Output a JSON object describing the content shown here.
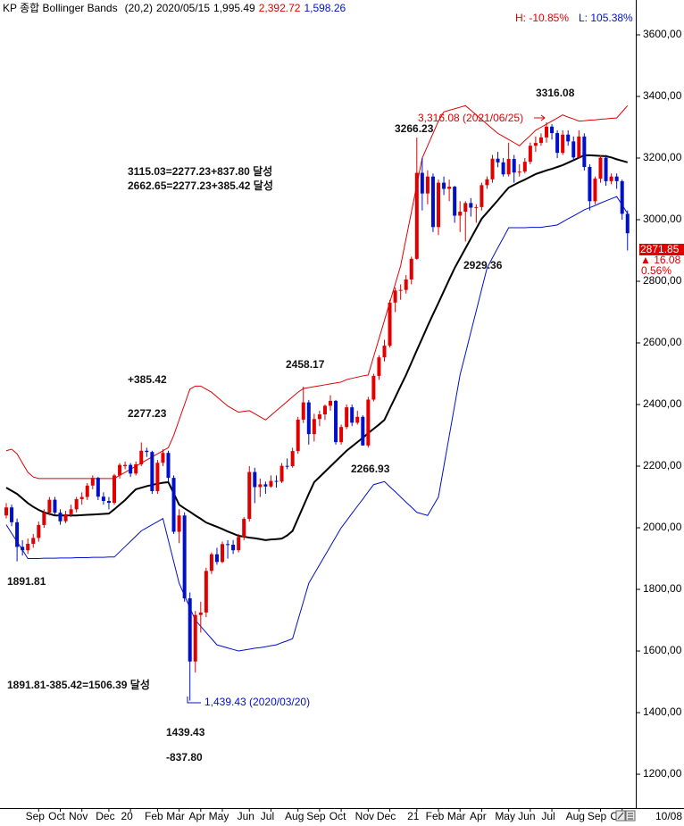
{
  "header": {
    "title": "KP 종합 Bollinger Bands",
    "params": "(20,2)",
    "date": "2020/05/15",
    "close": "1,995.49",
    "upper": "2,392.72",
    "lower": "1,598.26",
    "high_pct": "H: -10.85%",
    "low_pct": "L: 105.38%"
  },
  "chart_data": {
    "type": "candlestick",
    "categories": [
      null,
      null,
      null,
      null,
      null,
      null,
      "Sep",
      null,
      null,
      null,
      "Oct",
      null,
      null,
      null,
      "Nov",
      null,
      null,
      null,
      null,
      "Dec",
      null,
      null,
      null,
      "20",
      null,
      null,
      null,
      null,
      "Feb",
      null,
      null,
      null,
      "Mar",
      null,
      null,
      null,
      "Apr",
      null,
      null,
      null,
      "May",
      null,
      null,
      null,
      null,
      "Jun",
      null,
      null,
      null,
      "Jul",
      null,
      null,
      null,
      null,
      "Aug",
      null,
      null,
      null,
      "Sep",
      null,
      null,
      null,
      "Oct",
      null,
      null,
      null,
      null,
      "Nov",
      null,
      null,
      null,
      "Dec",
      null,
      null,
      null,
      null,
      "21",
      null,
      null,
      null,
      "Feb",
      null,
      null,
      null,
      "Mar",
      null,
      null,
      null,
      "Apr",
      null,
      null,
      null,
      null,
      "May",
      null,
      null,
      null,
      "Jun",
      null,
      null,
      null,
      "Jul",
      null,
      null,
      null,
      null,
      "Aug",
      null,
      null,
      null,
      "Sep",
      null,
      null,
      null,
      "Oct",
      null
    ],
    "ohlc": [
      [
        2040,
        2080,
        2030,
        2066
      ],
      [
        2066,
        2075,
        2005,
        2018
      ],
      [
        2018,
        2030,
        1891,
        1938
      ],
      [
        1938,
        1960,
        1910,
        1927
      ],
      [
        1927,
        1965,
        1915,
        1948
      ],
      [
        1948,
        1980,
        1935,
        1967
      ],
      [
        1967,
        2020,
        1955,
        2009
      ],
      [
        2009,
        2060,
        2000,
        2049
      ],
      [
        2049,
        2100,
        2040,
        2091
      ],
      [
        2091,
        2100,
        2040,
        2049
      ],
      [
        2049,
        2060,
        2010,
        2021
      ],
      [
        2021,
        2055,
        2015,
        2044
      ],
      [
        2044,
        2075,
        2035,
        2060
      ],
      [
        2060,
        2100,
        2050,
        2093
      ],
      [
        2093,
        2115,
        2075,
        2100
      ],
      [
        2100,
        2145,
        2090,
        2137
      ],
      [
        2137,
        2170,
        2125,
        2162
      ],
      [
        2162,
        2165,
        2090,
        2101
      ],
      [
        2101,
        2115,
        2075,
        2087
      ],
      [
        2087,
        2100,
        2060,
        2081
      ],
      [
        2081,
        2175,
        2075,
        2170
      ],
      [
        2170,
        2210,
        2160,
        2204
      ],
      [
        2200,
        2215,
        2190,
        2204
      ],
      [
        2204,
        2210,
        2165,
        2176
      ],
      [
        2176,
        2215,
        2170,
        2206
      ],
      [
        2206,
        2277,
        2200,
        2250
      ],
      [
        2250,
        2260,
        2230,
        2246
      ],
      [
        2246,
        2250,
        2110,
        2119
      ],
      [
        2119,
        2220,
        2110,
        2211
      ],
      [
        2211,
        2255,
        2200,
        2243
      ],
      [
        2243,
        2250,
        2150,
        2162
      ],
      [
        2162,
        2170,
        1980,
        1987
      ],
      [
        1987,
        2060,
        1950,
        2040
      ],
      [
        2040,
        2050,
        1760,
        1771
      ],
      [
        1771,
        1790,
        1439,
        1566
      ],
      [
        1566,
        1730,
        1530,
        1717
      ],
      [
        1717,
        1760,
        1660,
        1725
      ],
      [
        1725,
        1870,
        1710,
        1860
      ],
      [
        1860,
        1920,
        1850,
        1914
      ],
      [
        1914,
        1935,
        1880,
        1889
      ],
      [
        1889,
        1955,
        1885,
        1947
      ],
      [
        1947,
        1960,
        1900,
        1945
      ],
      [
        1945,
        1960,
        1915,
        1927
      ],
      [
        1927,
        1980,
        1920,
        1970
      ],
      [
        1970,
        2035,
        1960,
        2029
      ],
      [
        2029,
        2200,
        2020,
        2181
      ],
      [
        2181,
        2195,
        2080,
        2132
      ],
      [
        2132,
        2160,
        2100,
        2141
      ],
      [
        2141,
        2150,
        2110,
        2134
      ],
      [
        2134,
        2170,
        2130,
        2152
      ],
      [
        2152,
        2170,
        2130,
        2150
      ],
      [
        2150,
        2210,
        2145,
        2201
      ],
      [
        2201,
        2225,
        2190,
        2200
      ],
      [
        2200,
        2260,
        2195,
        2249
      ],
      [
        2249,
        2360,
        2240,
        2351
      ],
      [
        2351,
        2458,
        2340,
        2407
      ],
      [
        2407,
        2415,
        2270,
        2304
      ],
      [
        2304,
        2370,
        2280,
        2353
      ],
      [
        2353,
        2380,
        2330,
        2368
      ],
      [
        2368,
        2400,
        2350,
        2396
      ],
      [
        2396,
        2430,
        2380,
        2412
      ],
      [
        2412,
        2415,
        2270,
        2278
      ],
      [
        2278,
        2335,
        2270,
        2327
      ],
      [
        2327,
        2400,
        2320,
        2391
      ],
      [
        2391,
        2400,
        2330,
        2341
      ],
      [
        2341,
        2380,
        2335,
        2360
      ],
      [
        2360,
        2365,
        2266.93,
        2267
      ],
      [
        2267,
        2425,
        2260,
        2416
      ],
      [
        2416,
        2500,
        2410,
        2493
      ],
      [
        2493,
        2560,
        2480,
        2553
      ],
      [
        2553,
        2610,
        2540,
        2591
      ],
      [
        2591,
        2740,
        2585,
        2731
      ],
      [
        2731,
        2780,
        2700,
        2770
      ],
      [
        2770,
        2790,
        2740,
        2772
      ],
      [
        2772,
        2820,
        2760,
        2806
      ],
      [
        2806,
        2880,
        2790,
        2873
      ],
      [
        2873,
        3266.23,
        2870,
        3152
      ],
      [
        3152,
        3200,
        3030,
        3085
      ],
      [
        3085,
        3160,
        3050,
        3140
      ],
      [
        3140,
        3150,
        2960,
        2976
      ],
      [
        2976,
        3130,
        2950,
        3120
      ],
      [
        3120,
        3140,
        3080,
        3100
      ],
      [
        3100,
        3130,
        3060,
        3107
      ],
      [
        3107,
        3110,
        2990,
        3013
      ],
      [
        3013,
        3060,
        2960,
        3026
      ],
      [
        3026,
        3060,
        2929.36,
        3054
      ],
      [
        3054,
        3070,
        3010,
        3039
      ],
      [
        3039,
        3050,
        2990,
        3041
      ],
      [
        3041,
        3120,
        3030,
        3112
      ],
      [
        3112,
        3140,
        3100,
        3131
      ],
      [
        3131,
        3210,
        3120,
        3198
      ],
      [
        3198,
        3220,
        3170,
        3186
      ],
      [
        3186,
        3200,
        3140,
        3147
      ],
      [
        3147,
        3250,
        3140,
        3197
      ],
      [
        3197,
        3210,
        3120,
        3153
      ],
      [
        3153,
        3180,
        3140,
        3156
      ],
      [
        3156,
        3200,
        3150,
        3188
      ],
      [
        3188,
        3250,
        3180,
        3240
      ],
      [
        3240,
        3270,
        3220,
        3249
      ],
      [
        3249,
        3280,
        3240,
        3267
      ],
      [
        3267,
        3316.08,
        3250,
        3302
      ],
      [
        3302,
        3310,
        3260,
        3281
      ],
      [
        3281,
        3290,
        3200,
        3217
      ],
      [
        3217,
        3290,
        3210,
        3276
      ],
      [
        3276,
        3290,
        3240,
        3254
      ],
      [
        3254,
        3270,
        3190,
        3202
      ],
      [
        3202,
        3290,
        3200,
        3270
      ],
      [
        3270,
        3280,
        3160,
        3171
      ],
      [
        3171,
        3180,
        3030,
        3060
      ],
      [
        3060,
        3140,
        3050,
        3133
      ],
      [
        3133,
        3210,
        3120,
        3201
      ],
      [
        3201,
        3210,
        3110,
        3125
      ],
      [
        3125,
        3150,
        3115,
        3140
      ],
      [
        3140,
        3150,
        3100,
        3125
      ],
      [
        3125,
        3130,
        3000,
        3019
      ],
      [
        3019,
        3030,
        2900,
        2956
      ]
    ],
    "up_color": "#e00000",
    "down_color": "#0010c8",
    "bands": [
      {
        "color": "#e00000",
        "width": 1,
        "values": [
          2250,
          2255,
          2240,
          2210,
          2180,
          2165,
          2160,
          2160,
          2160,
          2160,
          2160,
          2160,
          2160,
          2160,
          2160,
          2160,
          2160,
          2160,
          2160,
          2160,
          2160,
          2170,
          2180,
          2190,
          2200,
          2210,
          2220,
          2230,
          2240,
          2250,
          2260,
          2300,
          2350,
          2400,
          2450,
          2460,
          2460,
          2450,
          2440,
          2425,
          2410,
          2395,
          2385,
          2375,
          2378,
          2380,
          2370,
          2360,
          2350,
          2365,
          2380,
          2395,
          2410,
          2425,
          2440,
          2452,
          2455,
          2458,
          2461,
          2464,
          2467,
          2470,
          2473,
          2481,
          2485,
          2489,
          2493,
          2496,
          2555,
          2614,
          2673,
          2732,
          2791,
          2850,
          2938,
          3025,
          3113,
          3200,
          3240,
          3280,
          3320,
          3350,
          3355,
          3360,
          3365,
          3370,
          3355,
          3340,
          3325,
          3310,
          3295,
          3280,
          3270,
          3260,
          3250,
          3240,
          3257,
          3273,
          3290,
          3300,
          3310,
          3320,
          3330,
          3340,
          3333,
          3327,
          3320,
          3321,
          3323,
          3324,
          3326,
          3327,
          3329,
          3330,
          3350,
          3370
        ]
      },
      {
        "color": "#000000",
        "width": 2,
        "values": [
          2130,
          2120,
          2110,
          2095,
          2080,
          2068,
          2058,
          2050,
          2045,
          2040,
          2040,
          2040,
          2040,
          2040,
          2041,
          2042,
          2043,
          2044,
          2045,
          2046,
          2060,
          2075,
          2090,
          2108,
          2125,
          2130,
          2135,
          2139,
          2143,
          2146,
          2148,
          2112,
          2075,
          2063,
          2052,
          2040,
          2029,
          2017,
          2010,
          2003,
          1996,
          1988,
          1981,
          1974,
          1971,
          1968,
          1966,
          1963,
          1960,
          1962,
          1963,
          1965,
          1975,
          1990,
          2030,
          2070,
          2110,
          2148,
          2165,
          2182,
          2199,
          2216,
          2233,
          2250,
          2264,
          2278,
          2292,
          2307,
          2321,
          2335,
          2350,
          2387,
          2423,
          2460,
          2496,
          2536,
          2576,
          2615,
          2655,
          2693,
          2730,
          2768,
          2806,
          2843,
          2875,
          2907,
          2939,
          2971,
          3003,
          3023,
          3043,
          3063,
          3084,
          3104,
          3113,
          3122,
          3130,
          3139,
          3148,
          3154,
          3160,
          3165,
          3171,
          3177,
          3185,
          3193,
          3201,
          3209,
          3209,
          3208,
          3207,
          3206,
          3202,
          3196,
          3191,
          3186
        ]
      },
      {
        "color": "#0010c8",
        "width": 1,
        "values": [
          2010,
          1982,
          1955,
          1928,
          1900,
          1900,
          1900,
          1901,
          1901,
          1901,
          1902,
          1902,
          1902,
          1903,
          1903,
          1903,
          1904,
          1904,
          1904,
          1905,
          1905,
          1922,
          1939,
          1956,
          1973,
          1990,
          2000,
          2010,
          2020,
          2030,
          1960,
          1890,
          1820,
          1780,
          1740,
          1700,
          1680,
          1660,
          1640,
          1620,
          1615,
          1610,
          1605,
          1600,
          1603,
          1606,
          1609,
          1611,
          1614,
          1617,
          1620,
          1627,
          1633,
          1640,
          1700,
          1760,
          1820,
          1850,
          1880,
          1910,
          1940,
          1970,
          2000,
          2023,
          2047,
          2070,
          2093,
          2117,
          2140,
          2145,
          2150,
          2133,
          2117,
          2100,
          2083,
          2067,
          2050,
          2045,
          2040,
          2070,
          2100,
          2199,
          2298,
          2397,
          2496,
          2565,
          2635,
          2704,
          2774,
          2843,
          2876,
          2909,
          2941,
          2974,
          2974,
          2974,
          2974,
          2975,
          2975,
          2975,
          2978,
          2980,
          2983,
          2993,
          3003,
          3012,
          3022,
          3032,
          3039,
          3046,
          3054,
          3061,
          3068,
          3075,
          3048,
          3020
        ]
      }
    ],
    "ylim": [
      1090,
      3713
    ],
    "yticks": [
      {
        "value": 1200,
        "label": "1200,00"
      },
      {
        "value": 1400,
        "label": "1400,00"
      },
      {
        "value": 1600,
        "label": "1600,00"
      },
      {
        "value": 1800,
        "label": "1800,00"
      },
      {
        "value": 2000,
        "label": "2000,00"
      },
      {
        "value": 2200,
        "label": "2200,00"
      },
      {
        "value": 2400,
        "label": "2400,00"
      },
      {
        "value": 2600,
        "label": "2600,00"
      },
      {
        "value": 2800,
        "label": "2800,00"
      },
      {
        "value": 3000,
        "label": "3000,00"
      },
      {
        "value": 3200,
        "label": "3200,00"
      },
      {
        "value": 3400,
        "label": "3400,00"
      },
      {
        "value": 3600,
        "label": "3600,00"
      }
    ],
    "last_price": {
      "price": "2871.85",
      "change": "▲ 16.08",
      "pct": "0.56%"
    },
    "end_date": "10/08",
    "annotations": [
      "3115.03=2277.23+837.80 달성",
      "2662.65=2277.23+385.42 달성",
      "+385.42",
      "2277.23",
      "1891.81",
      "1891.81-385.42=1506.39 달성",
      "1439.43",
      "-837.80",
      "2458.17",
      "2266.93",
      "3266.23",
      "2929.36",
      "3316.08"
    ],
    "high_note": "3,316.08 (2021/06/25)",
    "low_note": "1,439.43 (2020/03/20)"
  }
}
